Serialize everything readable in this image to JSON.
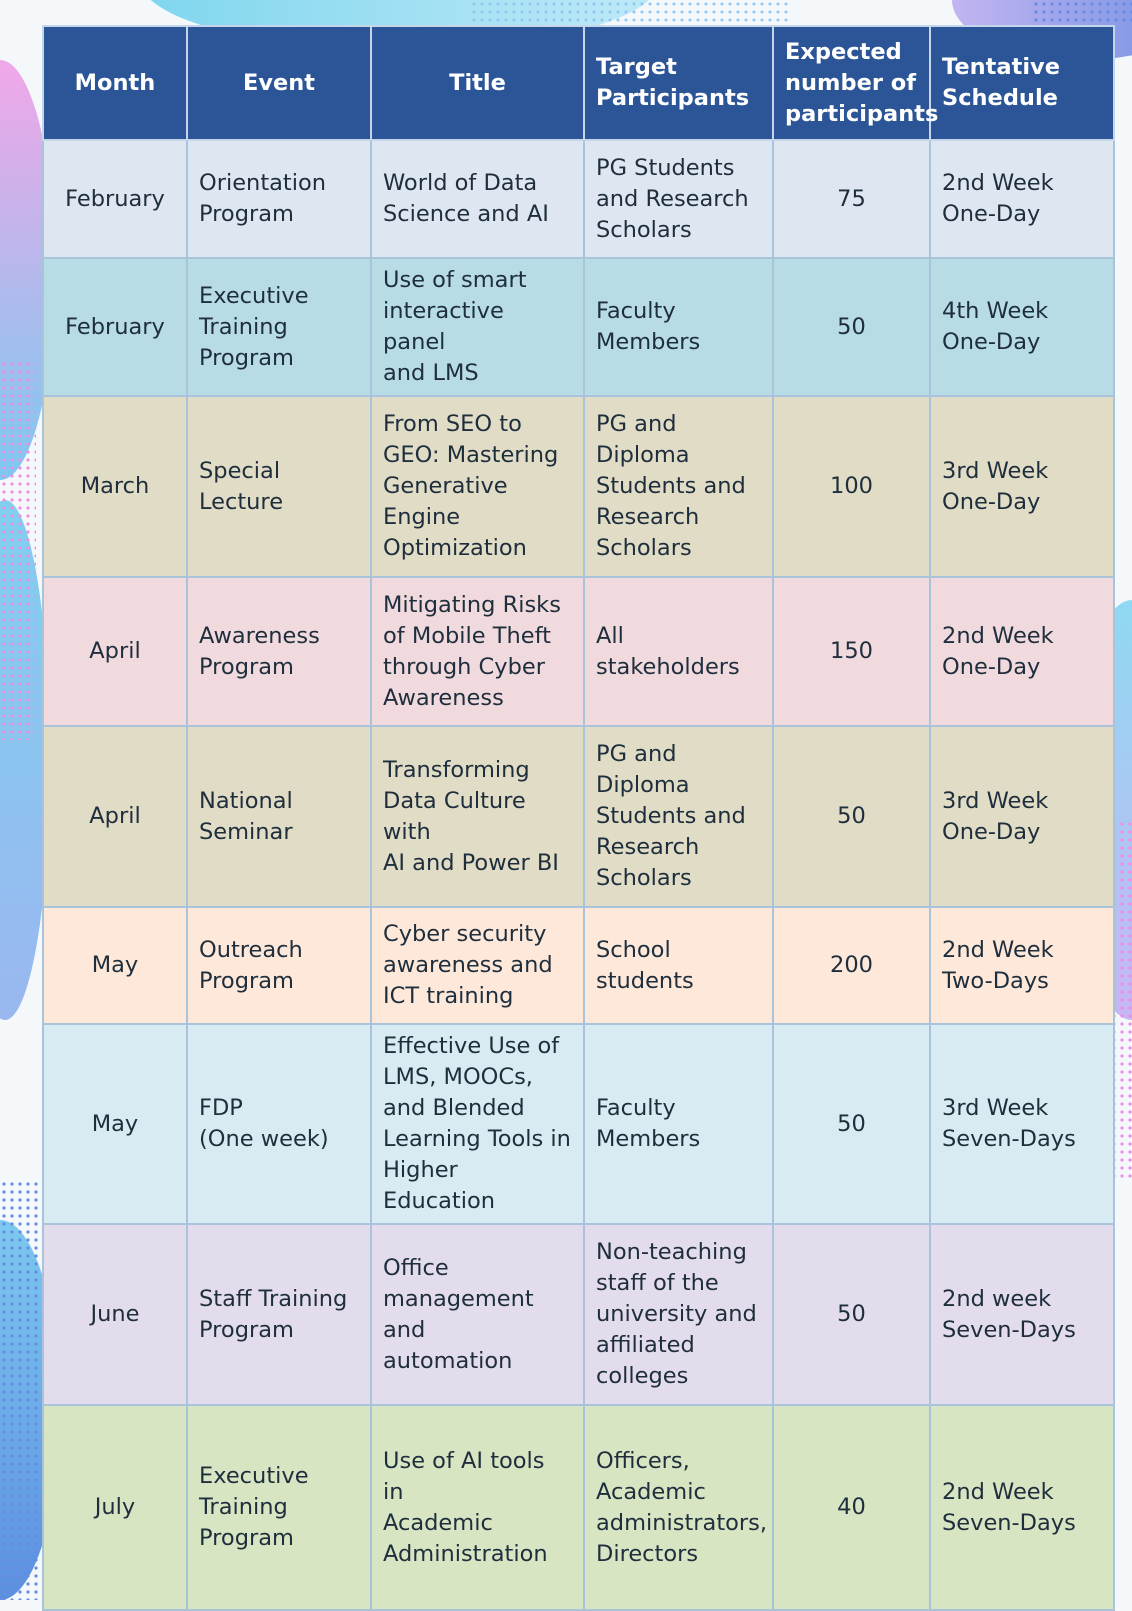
{
  "headers": {
    "month": "Month",
    "event": "Event",
    "title": "Title",
    "target": "Target Participants",
    "expected": "Expected number of participants",
    "schedule": "Tentative Schedule"
  },
  "rows": [
    {
      "month": "February",
      "event": "Orientation\nProgram",
      "title": "World of Data\nScience and AI",
      "target": "PG Students\nand Research\nScholars",
      "expected": "75",
      "schedule": "2nd Week\nOne-Day"
    },
    {
      "month": "February",
      "event": "Executive\nTraining\nProgram",
      "title": "Use of smart\ninteractive panel\nand LMS",
      "target": "Faculty\nMembers",
      "expected": "50",
      "schedule": "4th Week\nOne-Day"
    },
    {
      "month": "March",
      "event": "Special\nLecture",
      "title": "From SEO to\nGEO: Mastering\nGenerative\nEngine\nOptimization",
      "target": "PG and\nDiploma\nStudents and\nResearch\nScholars",
      "expected": "100",
      "schedule": "3rd Week\nOne-Day"
    },
    {
      "month": "April",
      "event": "Awareness\nProgram",
      "title": "Mitigating Risks\nof Mobile Theft\nthrough Cyber\nAwareness",
      "target": "All\nstakeholders",
      "expected": "150",
      "schedule": "2nd Week\nOne-Day"
    },
    {
      "month": "April",
      "event": "National\nSeminar",
      "title": "Transforming\nData Culture with\nAI and Power BI",
      "target": "PG and\nDiploma\nStudents and\nResearch\nScholars",
      "expected": "50",
      "schedule": "3rd Week\nOne-Day"
    },
    {
      "month": "May",
      "event": "Outreach\nProgram",
      "title": "Cyber security\nawareness and\nICT training",
      "target": "School\nstudents",
      "expected": "200",
      "schedule": "2nd Week\nTwo-Days"
    },
    {
      "month": "May",
      "event": "FDP\n(One week)",
      "title": "Effective Use of\nLMS, MOOCs,\nand Blended\nLearning Tools in\nHigher Education",
      "target": "Faculty\nMembers",
      "expected": "50",
      "schedule": "3rd Week\n Seven-Days"
    },
    {
      "month": "June",
      "event": "Staff Training\nProgram",
      "title": "Office\nmanagement and\nautomation",
      "target": "Non-teaching\nstaff of the\nuniversity and\naffiliated\ncolleges",
      "expected": "50",
      "schedule": "2nd week\nSeven-Days"
    },
    {
      "month": "July",
      "event": "Executive\nTraining\nProgram",
      "title": "Use of AI tools in\nAcademic\nAdministration",
      "target": "Officers,\nAcademic\nadministrators,\nDirectors",
      "expected": "40",
      "schedule": "2nd Week\nSeven-Days"
    }
  ]
}
